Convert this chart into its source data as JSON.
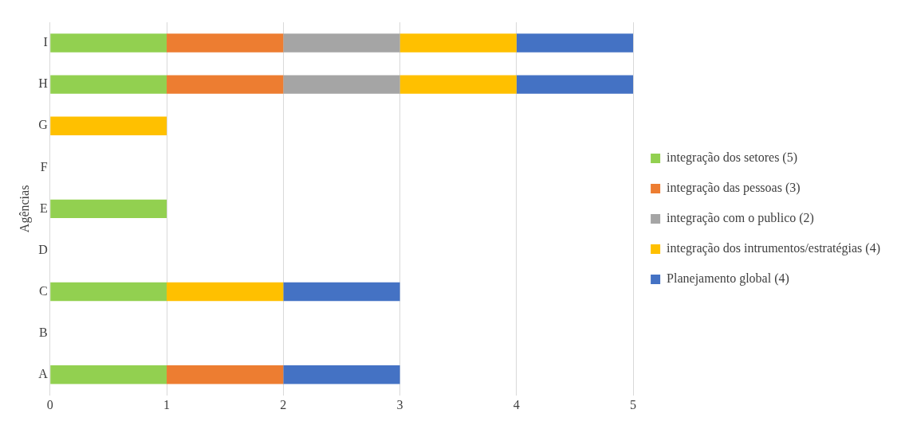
{
  "chart_data": {
    "type": "bar",
    "orientation": "horizontal",
    "stacked": true,
    "ylabel": "Agências",
    "categories": [
      "I",
      "H",
      "G",
      "F",
      "E",
      "D",
      "C",
      "B",
      "A"
    ],
    "series": [
      {
        "name": "integração dos setores (5)",
        "color": "#92d050",
        "values": [
          1,
          1,
          0,
          0,
          1,
          0,
          1,
          0,
          1
        ]
      },
      {
        "name": "integração das pessoas (3)",
        "color": "#ed7d31",
        "values": [
          1,
          1,
          0,
          0,
          0,
          0,
          0,
          0,
          1
        ]
      },
      {
        "name": "integração com o publico (2)",
        "color": "#a5a5a5",
        "values": [
          1,
          1,
          0,
          0,
          0,
          0,
          0,
          0,
          0
        ]
      },
      {
        "name": "integração dos intrumentos/estratégias (4)",
        "color": "#ffc000",
        "values": [
          1,
          1,
          1,
          0,
          0,
          0,
          1,
          0,
          0
        ]
      },
      {
        "name": "Planejamento global (4)",
        "color": "#4472c4",
        "values": [
          1,
          1,
          0,
          0,
          0,
          0,
          1,
          0,
          1
        ]
      }
    ],
    "xlim": [
      0,
      5
    ],
    "xticks": [
      0,
      1,
      2,
      3,
      4,
      5
    ],
    "grid": "x",
    "legend": "right"
  }
}
